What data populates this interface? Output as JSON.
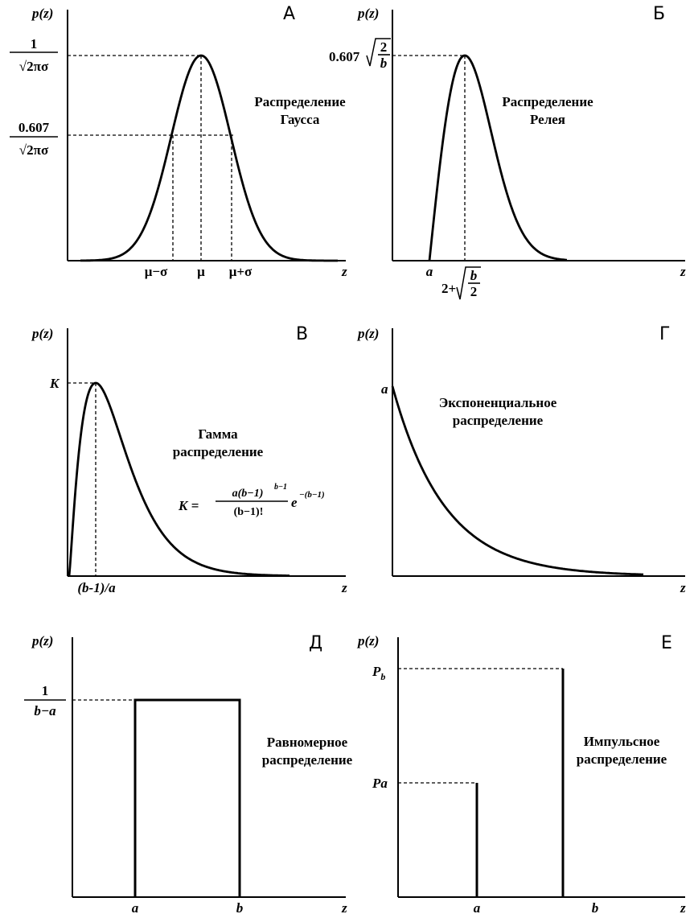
{
  "panels": {
    "a": {
      "letter": "А",
      "axis_y": "p(z)",
      "axis_x": "z",
      "title1": "Распределение",
      "title2": "Гаусса",
      "peak_num": "1",
      "peak_den": "√2πσ",
      "level_num": "0.607",
      "level_den": "√2πσ",
      "tick_left": "μ−σ",
      "tick_mid": "μ",
      "tick_right": "μ+σ"
    },
    "b": {
      "letter": "Б",
      "axis_y": "p(z)",
      "axis_x": "z",
      "title1": "Распределение",
      "title2": "Релея",
      "peak_coef": "0.607",
      "peak_frac_num": "2",
      "peak_frac_den": "b",
      "tick_a": "a",
      "tick_peak_prefix": "2+",
      "tick_peak_num": "b",
      "tick_peak_den": "2"
    },
    "c": {
      "letter": "В",
      "axis_y": "p(z)",
      "axis_x": "z",
      "title1": "Гамма",
      "title2": "распределение",
      "peak_label": "K",
      "tick": "(b-1)/a",
      "formula_lhs": "K =",
      "formula_num": "a(b−1)",
      "formula_num_exp": "b−1",
      "formula_den": "(b−1)!",
      "formula_e": "e",
      "formula_e_exp": "−(b−1)"
    },
    "d": {
      "letter": "Г",
      "axis_y": "p(z)",
      "axis_x": "z",
      "title1": "Экспоненциальное",
      "title2": "распределение",
      "y_label": "a"
    },
    "e": {
      "letter": "Д",
      "axis_y": "p(z)",
      "axis_x": "z",
      "title1": "Равномерное",
      "title2": "распределение",
      "level_num": "1",
      "level_den": "b−a",
      "tick_a": "a",
      "tick_b": "b"
    },
    "f": {
      "letter": "Е",
      "axis_y": "p(z)",
      "axis_x": "z",
      "title1": "Импульсное",
      "title2": "распределение",
      "label_pb": "P",
      "label_pb_sub": "b",
      "label_pa": "Pa",
      "tick_a": "a",
      "tick_b": "b"
    }
  }
}
